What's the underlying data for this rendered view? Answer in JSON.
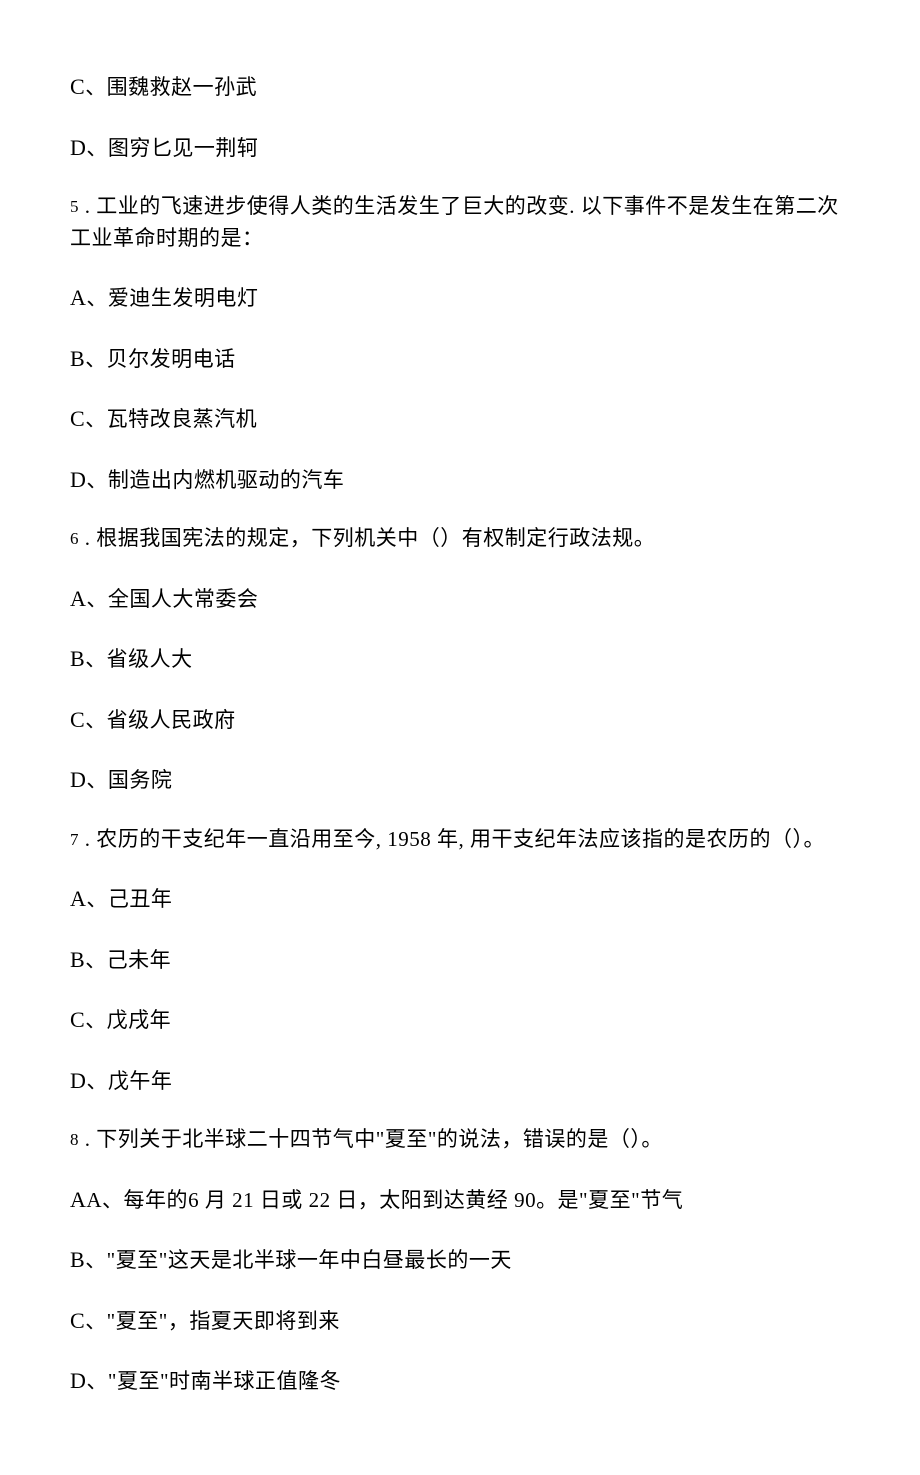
{
  "background_color": "#ffffff",
  "text_color": "#000000",
  "font_size_main": 21,
  "font_size_number": 17,
  "font_family_cjk": "SimSun",
  "font_family_western": "Times New Roman",
  "lines": {
    "l1": "C、围魏救赵一孙武",
    "l2": "D、图穷匕见一荆轲",
    "l3_num": "5",
    "l3_text": " . 工业的飞速进步使得人类的生活发生了巨大的改变. 以下事件不是发生在第二次工业革命时期的是：",
    "l4": "A、爱迪生发明电灯",
    "l5": "B、贝尔发明电话",
    "l6": "C、瓦特改良蒸汽机",
    "l7": "D、制造出内燃机驱动的汽车",
    "l8_num": "6",
    "l8_text": " . 根据我国宪法的规定，下列机关中（）有权制定行政法规。",
    "l9": "A、全国人大常委会",
    "l10": "B、省级人大",
    "l11": "C、省级人民政府",
    "l12": "D、国务院",
    "l13_num": "7",
    "l13_text_a": " . 农历的干支纪年一直沿用至今, ",
    "l13_year": "1958",
    "l13_text_b": " 年, 用干支纪年法应该指的是农历的（）。",
    "l14": "A、己丑年",
    "l15": "B、己未年",
    "l16": "C、戊戌年",
    "l17": "D、戊午年",
    "l18_num": "8",
    "l18_text": " . 下列关于北半球二十四节气中\"夏至\"的说法，错误的是（）。",
    "l19_a": "A、每年的",
    "l19_b": "6",
    "l19_c": " 月 ",
    "l19_d": "21",
    "l19_e": " 日或 ",
    "l19_f": "22",
    "l19_g": " 日，太阳到达黄经 ",
    "l19_h": "90",
    "l19_i": "。是\"夏至\"节气",
    "l20": "B、\"夏至\"这天是北半球一年中白昼最长的一天",
    "l21": "C、\"夏至\"，指夏天即将到来",
    "l22": "D、\"夏至\"时南半球正值隆冬"
  }
}
